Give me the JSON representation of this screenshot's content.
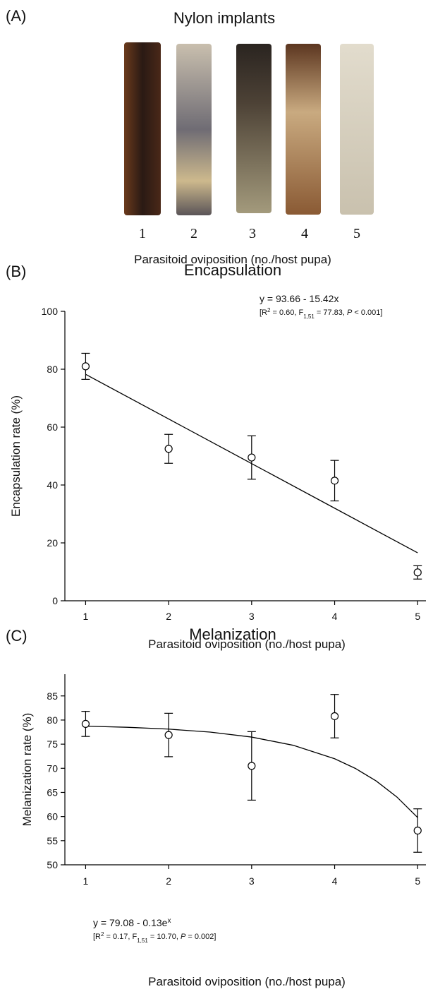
{
  "panel_a": {
    "tag": "(A)",
    "title": "Nylon implants",
    "labels": [
      "1",
      "2",
      "3",
      "4",
      "5"
    ],
    "xlabel": "Parasitoid oviposition (no./host pupa)"
  },
  "chart_data": [
    {
      "type": "scatter",
      "tag": "(B)",
      "title": "Encapsulation",
      "xlabel": "Parasitoid oviposition (no./host pupa)",
      "ylabel": "Encapsulation rate (%)",
      "x": [
        1,
        2,
        3,
        4,
        5
      ],
      "values": [
        81,
        52.5,
        49.5,
        41.5,
        9.8
      ],
      "errors": [
        4.5,
        5,
        7.5,
        7,
        2.3
      ],
      "fit": {
        "x": [
          1,
          2,
          3,
          4,
          5
        ],
        "values": [
          78.24,
          62.82,
          47.4,
          31.98,
          16.56
        ]
      },
      "equation": [
        "y = 93.66 - 15.42x"
      ],
      "annotation": [
        "[R",
        "2",
        " = 0.60, F",
        "1,51",
        " = 77.83, ",
        "P",
        " < 0.001]"
      ],
      "xlim": [
        0.75,
        5.1
      ],
      "ylim": [
        0,
        100
      ],
      "xticks": [
        1,
        2,
        3,
        4,
        5
      ],
      "yticks": [
        0,
        20,
        40,
        60,
        80,
        100
      ]
    },
    {
      "type": "scatter",
      "tag": "(C)",
      "title": "Melanization",
      "xlabel": "Parasitoid oviposition (no./host pupa)",
      "ylabel": "Melanization rate (%)",
      "x": [
        1,
        2,
        3,
        4,
        5
      ],
      "values": [
        79.2,
        76.9,
        70.5,
        80.8,
        57.1
      ],
      "errors": [
        2.6,
        4.5,
        7.1,
        4.5,
        4.5
      ],
      "fit": {
        "x": [
          1,
          1.5,
          2,
          2.5,
          3,
          3.5,
          4,
          4.25,
          4.5,
          4.75,
          5
        ],
        "values": [
          78.73,
          78.5,
          78.12,
          77.5,
          76.47,
          74.77,
          71.98,
          69.97,
          67.38,
          64.05,
          59.79
        ]
      },
      "equation": [
        "y = 79.08 - 0.13e",
        "x"
      ],
      "annotation": [
        "[R",
        "2",
        " = 0.17, F",
        "1,51",
        " = 10.70, ",
        "P",
        " = 0.002]"
      ],
      "xlim": [
        0.75,
        5.1
      ],
      "ylim": [
        50,
        89.5
      ],
      "xticks": [
        1,
        2,
        3,
        4,
        5
      ],
      "yticks": [
        50,
        55,
        60,
        65,
        70,
        75,
        80,
        85
      ]
    }
  ]
}
